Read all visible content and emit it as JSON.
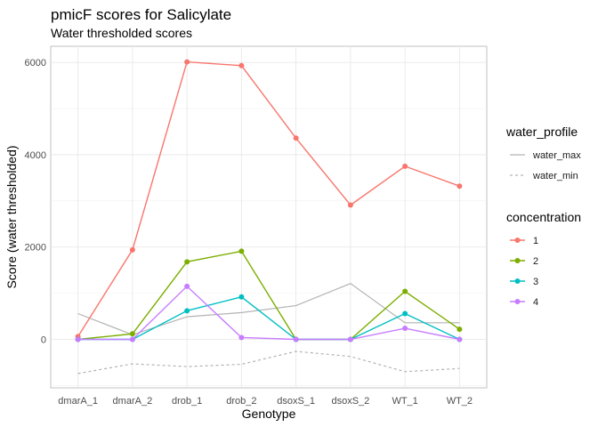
{
  "chart_data": {
    "type": "line",
    "title": "pmicF scores for Salicylate",
    "subtitle": "Water thresholded scores",
    "xlabel": "Genotype",
    "ylabel": "Score (water thresholded)",
    "categories": [
      "dmarA_1",
      "dmarA_2",
      "drob_1",
      "drob_2",
      "dsoxS_1",
      "dsoxS_2",
      "WT_1",
      "WT_2"
    ],
    "ylim": [
      -1050,
      6350
    ],
    "yticks": [
      0,
      2000,
      4000,
      6000
    ],
    "grid": true,
    "water_profile": {
      "title": "water_profile",
      "series": [
        {
          "name": "water_max",
          "color": "#b3b3b3",
          "dash": "solid",
          "values": [
            560,
            100,
            490,
            580,
            730,
            1210,
            360,
            360
          ]
        },
        {
          "name": "water_min",
          "color": "#b3b3b3",
          "dash": "dashed",
          "values": [
            -740,
            -530,
            -590,
            -540,
            -260,
            -370,
            -700,
            -630
          ]
        }
      ]
    },
    "concentration": {
      "title": "concentration",
      "series": [
        {
          "name": "1",
          "color": "#f8766d",
          "values": [
            60,
            1940,
            6010,
            5930,
            4360,
            2910,
            3750,
            3320
          ]
        },
        {
          "name": "2",
          "color": "#7cae00",
          "values": [
            0,
            120,
            1680,
            1910,
            0,
            0,
            1040,
            220
          ]
        },
        {
          "name": "3",
          "color": "#00bfc4",
          "values": [
            0,
            0,
            620,
            920,
            0,
            0,
            560,
            0
          ]
        },
        {
          "name": "4",
          "color": "#c77cff",
          "values": [
            0,
            0,
            1150,
            40,
            0,
            0,
            240,
            0
          ]
        }
      ]
    }
  }
}
